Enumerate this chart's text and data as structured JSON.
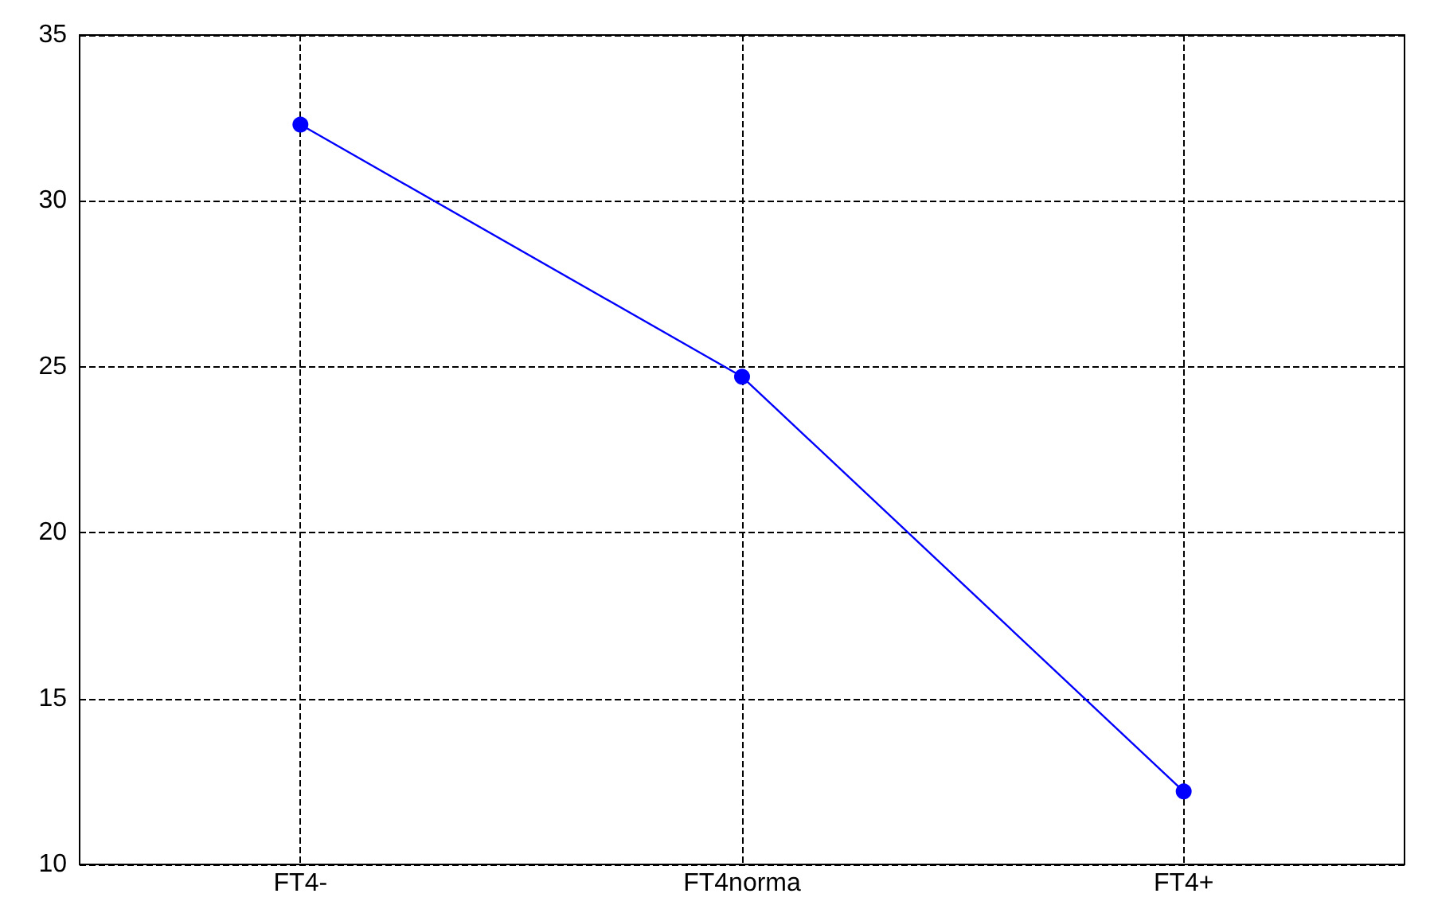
{
  "chart_data": {
    "type": "line",
    "categories": [
      "FT4-",
      "FT4norma",
      "FT4+"
    ],
    "series": [
      {
        "color": "#0000ff",
        "values": [
          32.3,
          24.7,
          12.2
        ]
      }
    ],
    "ylim": [
      10,
      35
    ],
    "yticks": [
      10,
      15,
      20,
      25,
      30,
      35
    ],
    "grid": true,
    "marker": "circle",
    "line_style": "solid"
  }
}
